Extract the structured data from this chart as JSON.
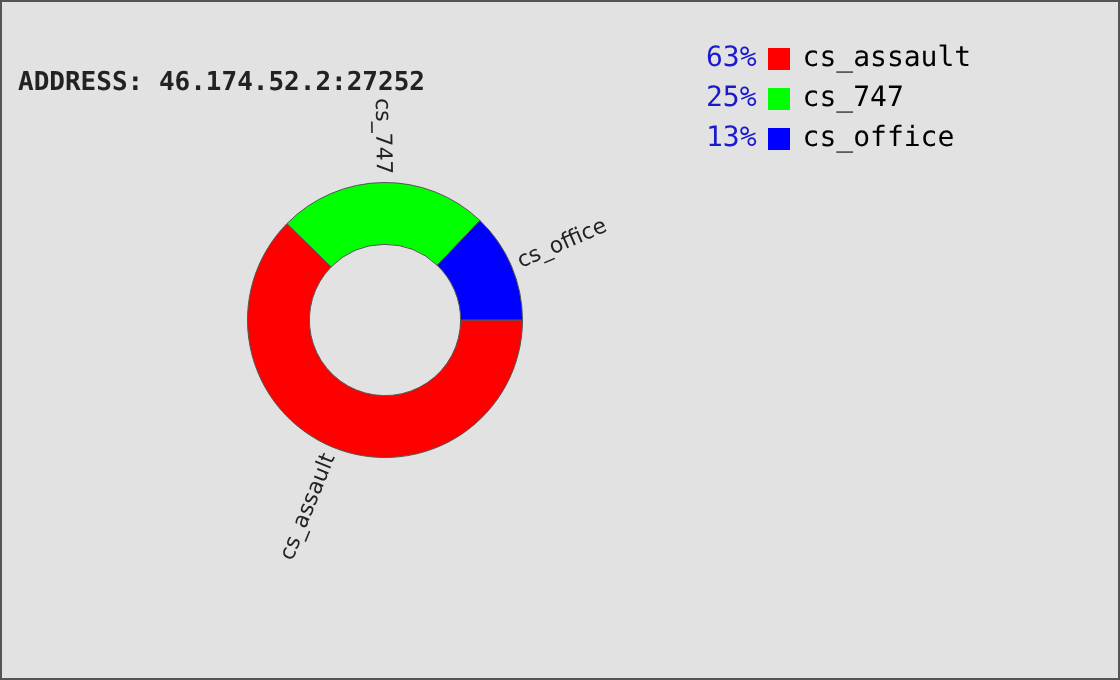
{
  "chart_data": {
    "type": "donut",
    "title": "ADDRESS: 46.174.52.2:27252",
    "categories": [
      "cs_assault",
      "cs_747",
      "cs_office"
    ],
    "values": [
      63,
      25,
      13
    ],
    "colors": [
      "#ff0000",
      "#00ff00",
      "#0000ff"
    ],
    "value_labels": [
      "63%",
      "25%",
      "13%"
    ],
    "legend": "top right"
  }
}
